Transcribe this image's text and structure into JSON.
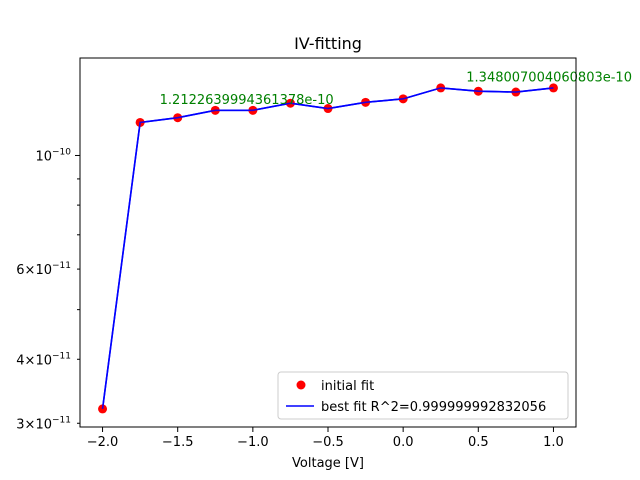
{
  "chart_data": {
    "type": "line",
    "title": "IV-fitting",
    "xlabel": "Voltage [V]",
    "ylabel": "",
    "yscale": "log",
    "xlim": [
      -2.15,
      1.15
    ],
    "ylim": [
      2.95e-11,
      1.55e-10
    ],
    "x_ticks": [
      -2.0,
      -1.5,
      -1.0,
      -0.5,
      0.0,
      0.5,
      1.0
    ],
    "x_tick_labels": [
      "−2.0",
      "−1.5",
      "−1.0",
      "−0.5",
      "0.0",
      "0.5",
      "1.0"
    ],
    "y_major_ticks": [
      1e-10
    ],
    "y_major_tick_labels": [
      {
        "base": "10",
        "exp": "−10"
      }
    ],
    "y_minor_ticks": [
      3e-11,
      4e-11,
      5e-11,
      6e-11,
      7e-11,
      8e-11,
      9e-11
    ],
    "y_minor_tick_labels": [
      {
        "value": 6e-11,
        "mant": "6",
        "exp": "−11"
      },
      {
        "value": 4e-11,
        "mant": "4",
        "exp": "−11"
      },
      {
        "value": 3e-11,
        "mant": "3",
        "exp": "−11"
      }
    ],
    "x": [
      -2.0,
      -1.75,
      -1.5,
      -1.25,
      -1.0,
      -0.75,
      -0.5,
      -0.25,
      0.0,
      0.25,
      0.5,
      0.75,
      1.0
    ],
    "series": [
      {
        "name": "initial fit",
        "kind": "markers",
        "color": "#ff0000",
        "marker_edge": "#2222aa",
        "values": [
          3.2e-11,
          1.16e-10,
          1.185e-10,
          1.225e-10,
          1.225e-10,
          1.265e-10,
          1.235e-10,
          1.27e-10,
          1.29e-10,
          1.355e-10,
          1.335e-10,
          1.33e-10,
          1.355e-10
        ]
      },
      {
        "name": "best fit R^2=0.999999992832056",
        "kind": "line",
        "color": "#0000ff",
        "values": [
          3.2e-11,
          1.16e-10,
          1.185e-10,
          1.225e-10,
          1.225e-10,
          1.265e-10,
          1.235e-10,
          1.27e-10,
          1.29e-10,
          1.355e-10,
          1.335e-10,
          1.33e-10,
          1.355e-10
        ]
      }
    ],
    "annotations": [
      {
        "text": "1.2122639994361378e-10",
        "x": -1.62,
        "y": 1.26e-10,
        "color": "#008000"
      },
      {
        "text": "1.348007004060803e-10",
        "x": 0.42,
        "y": 1.395e-10,
        "color": "#008000"
      }
    ],
    "legend": {
      "position": "lower-right"
    },
    "grid": false
  }
}
